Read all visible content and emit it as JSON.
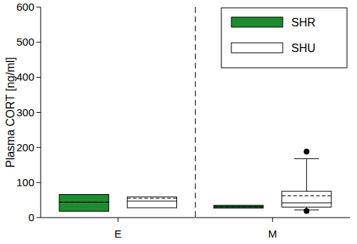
{
  "chart_data": {
    "type": "box",
    "y_label": "Plasma CORT [ng/ml]",
    "categories": [
      "E",
      "M"
    ],
    "ylim": [
      0,
      600
    ],
    "yticks": [
      0,
      100,
      200,
      300,
      400,
      500,
      600
    ],
    "legend": "upper right",
    "series": [
      {
        "name": "SHR",
        "color": "#1e8c2e",
        "boxes": [
          {
            "q1": 18,
            "median": 44,
            "mean": 44,
            "q3": 66,
            "whisker_low": null,
            "whisker_high": null,
            "outliers": []
          },
          {
            "q1": 27,
            "median": 31,
            "mean": 31,
            "q3": 35,
            "whisker_low": null,
            "whisker_high": null,
            "outliers": []
          }
        ]
      },
      {
        "name": "SHU",
        "color": "#ffffff",
        "boxes": [
          {
            "q1": 28,
            "median": 47,
            "mean": 55,
            "q3": 59,
            "whisker_low": null,
            "whisker_high": null,
            "outliers": []
          },
          {
            "q1": 30,
            "median": 42,
            "mean": 62,
            "q3": 75,
            "whisker_low": 22,
            "whisker_high": 168,
            "outliers": [
              19,
              188
            ]
          }
        ]
      }
    ]
  }
}
